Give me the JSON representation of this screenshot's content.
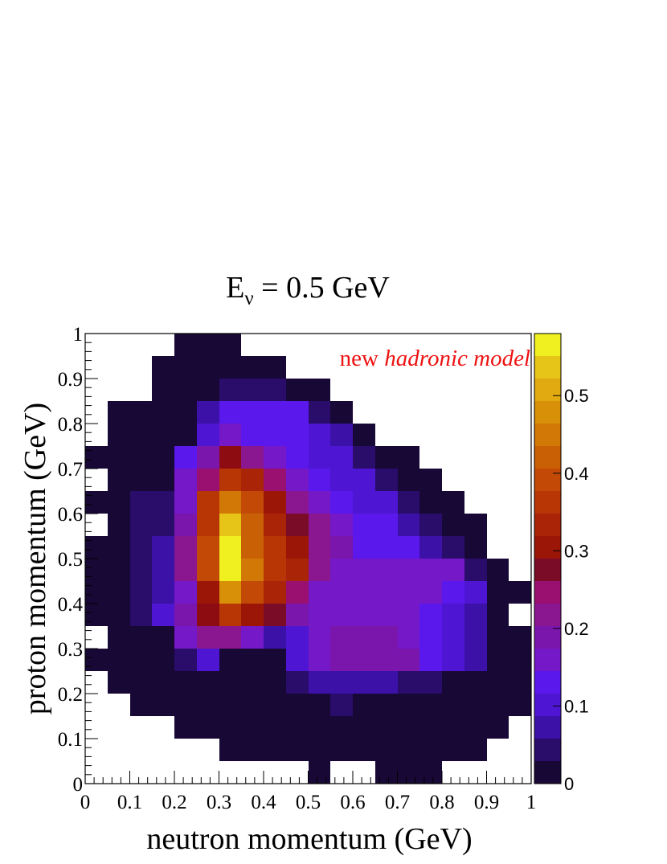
{
  "chart_data": {
    "type": "heatmap",
    "title": "E",
    "title_subscript": "ν",
    "title_suffix": " = 0.5 GeV",
    "xlabel": "neutron momentum (GeV)",
    "ylabel": "proton momentum (GeV)",
    "annotation": {
      "prefix": "new ",
      "emphasis": "hadronic model",
      "color": "#ee1111"
    },
    "xlim": [
      0,
      1
    ],
    "ylim": [
      0,
      1
    ],
    "x_ticks": [
      "0",
      "0.1",
      "0.2",
      "0.3",
      "0.4",
      "0.5",
      "0.6",
      "0.7",
      "0.8",
      "0.9",
      "1"
    ],
    "y_ticks": [
      "0",
      "0.1",
      "0.2",
      "0.3",
      "0.4",
      "0.5",
      "0.6",
      "0.7",
      "0.8",
      "0.9",
      "1"
    ],
    "colorbar": {
      "min": 0,
      "max": 0.58,
      "ticks": [
        "0",
        "0.1",
        "0.2",
        "0.3",
        "0.4",
        "0.5"
      ],
      "tick_values": [
        0,
        0.1,
        0.2,
        0.3,
        0.4,
        0.5
      ],
      "levels": 20
    },
    "bins": 20,
    "z_rows_top_to_bottom": [
      [
        -1,
        -1,
        -1,
        -1,
        0.01,
        0.01,
        0.01,
        -1,
        -1,
        -1,
        -1,
        -1,
        -1,
        -1,
        -1,
        -1,
        -1,
        -1,
        -1,
        -1
      ],
      [
        -1,
        -1,
        -1,
        0.01,
        0.01,
        0.01,
        0.01,
        0.01,
        0.01,
        -1,
        -1,
        -1,
        -1,
        -1,
        -1,
        -1,
        -1,
        -1,
        -1,
        -1
      ],
      [
        -1,
        -1,
        -1,
        0.01,
        0.01,
        0.01,
        0.05,
        0.05,
        0.05,
        0.01,
        0.01,
        -1,
        -1,
        -1,
        -1,
        -1,
        -1,
        -1,
        -1,
        -1
      ],
      [
        -1,
        0.01,
        0.01,
        0.01,
        0.01,
        0.07,
        0.12,
        0.12,
        0.12,
        0.12,
        0.05,
        0.01,
        -1,
        -1,
        -1,
        -1,
        -1,
        -1,
        -1,
        -1
      ],
      [
        -1,
        0.01,
        0.01,
        0.01,
        0.01,
        0.1,
        0.15,
        0.12,
        0.12,
        0.12,
        0.1,
        0.07,
        0.01,
        -1,
        -1,
        -1,
        -1,
        -1,
        -1,
        -1
      ],
      [
        0.01,
        0.01,
        0.01,
        0.01,
        0.12,
        0.18,
        0.3,
        0.21,
        0.15,
        0.12,
        0.1,
        0.1,
        0.05,
        0.01,
        0.01,
        -1,
        -1,
        -1,
        -1,
        -1
      ],
      [
        -1,
        0.01,
        0.01,
        0.01,
        0.14,
        0.24,
        0.38,
        0.34,
        0.24,
        0.15,
        0.12,
        0.1,
        0.1,
        0.05,
        0.01,
        0.01,
        -1,
        -1,
        -1,
        -1
      ],
      [
        0.01,
        0.01,
        0.05,
        0.05,
        0.15,
        0.36,
        0.46,
        0.4,
        0.32,
        0.2,
        0.15,
        0.12,
        0.1,
        0.1,
        0.05,
        0.01,
        0.01,
        -1,
        -1,
        -1
      ],
      [
        -1,
        0.01,
        0.05,
        0.05,
        0.18,
        0.36,
        0.54,
        0.42,
        0.34,
        0.27,
        0.2,
        0.14,
        0.12,
        0.12,
        0.08,
        0.05,
        0.01,
        0.01,
        -1,
        -1
      ],
      [
        0.01,
        0.01,
        0.05,
        0.07,
        0.2,
        0.39,
        0.58,
        0.44,
        0.36,
        0.32,
        0.22,
        0.18,
        0.13,
        0.13,
        0.12,
        0.08,
        0.05,
        0.01,
        -1,
        -1
      ],
      [
        0.01,
        0.01,
        0.05,
        0.07,
        0.21,
        0.39,
        0.58,
        0.46,
        0.36,
        0.34,
        0.21,
        0.15,
        0.15,
        0.15,
        0.15,
        0.14,
        0.14,
        0.05,
        0.01,
        -1
      ],
      [
        0.01,
        0.01,
        0.05,
        0.07,
        0.15,
        0.33,
        0.48,
        0.4,
        0.34,
        0.23,
        0.15,
        0.15,
        0.15,
        0.15,
        0.15,
        0.14,
        0.12,
        0.1,
        0.01,
        0.01
      ],
      [
        0.01,
        0.01,
        0.05,
        0.1,
        0.18,
        0.28,
        0.37,
        0.32,
        0.25,
        0.17,
        0.15,
        0.16,
        0.16,
        0.16,
        0.16,
        0.12,
        0.1,
        0.07,
        0.01,
        -1
      ],
      [
        -1,
        0.01,
        0.01,
        0.01,
        0.15,
        0.21,
        0.21,
        0.15,
        0.06,
        0.11,
        0.16,
        0.18,
        0.18,
        0.18,
        0.14,
        0.12,
        0.1,
        0.07,
        0.01,
        0.01
      ],
      [
        0.01,
        0.01,
        0.01,
        0.01,
        0.05,
        0.1,
        0.01,
        0.01,
        0.01,
        0.1,
        0.14,
        0.18,
        0.18,
        0.18,
        0.18,
        0.12,
        0.1,
        0.07,
        0.01,
        0.01
      ],
      [
        -1,
        0.01,
        0.01,
        0.01,
        0.01,
        0.01,
        0.01,
        0.01,
        0.01,
        0.05,
        0.07,
        0.08,
        0.08,
        0.08,
        0.05,
        0.05,
        0.01,
        0.01,
        0.01,
        0.01
      ],
      [
        -1,
        -1,
        0.01,
        0.01,
        0.01,
        0.01,
        0.01,
        0.01,
        0.01,
        0.01,
        0.01,
        0.05,
        0.01,
        0.01,
        0.01,
        0.01,
        0.01,
        0.01,
        0.01,
        0.01
      ],
      [
        -1,
        -1,
        -1,
        -1,
        0.01,
        0.01,
        0.01,
        0.01,
        0.01,
        0.01,
        0.01,
        0.01,
        0.01,
        0.01,
        0.01,
        0.01,
        0.01,
        0.01,
        0.01,
        -1
      ],
      [
        -1,
        -1,
        -1,
        -1,
        -1,
        -1,
        0.01,
        0.01,
        0.01,
        0.01,
        0.01,
        0.01,
        0.01,
        0.01,
        0.01,
        0.01,
        0.01,
        0.01,
        -1,
        -1
      ],
      [
        -1,
        -1,
        -1,
        -1,
        -1,
        -1,
        -1,
        -1,
        -1,
        -1,
        0.01,
        -1,
        -1,
        0.01,
        0.01,
        0.01,
        -1,
        -1,
        -1,
        -1
      ]
    ],
    "empty_bin_value": -1,
    "palette": [
      "#180836",
      "#2a0c6a",
      "#3c11a8",
      "#4e16d2",
      "#5a18ec",
      "#7418c8",
      "#7a16ac",
      "#8a1690",
      "#9a1070",
      "#7a0c28",
      "#8c0c12",
      "#9c1608",
      "#aa2408",
      "#b83606",
      "#c24a06",
      "#ca6006",
      "#d27806",
      "#d89008",
      "#e0aa10",
      "#e6c418",
      "#f0f020"
    ]
  }
}
